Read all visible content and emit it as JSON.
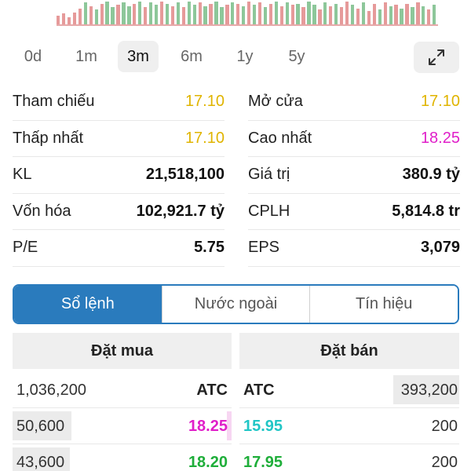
{
  "periods": [
    {
      "label": "0d",
      "active": false
    },
    {
      "label": "1m",
      "active": false
    },
    {
      "label": "3m",
      "active": true
    },
    {
      "label": "6m",
      "active": false
    },
    {
      "label": "1y",
      "active": false
    },
    {
      "label": "5y",
      "active": false
    }
  ],
  "colors": {
    "up": "#8dc79a",
    "down": "#e69a9a",
    "reference": "#e0b400",
    "ceiling": "#e01fc9",
    "floor": "#21c6c6",
    "rise": "#1fae3a",
    "accent": "#2a7bbd"
  },
  "stats": [
    {
      "left": {
        "label": "Tham chiếu",
        "value": "17.10",
        "tone": "yellow"
      },
      "right": {
        "label": "Mở cửa",
        "value": "17.10",
        "tone": "yellow"
      }
    },
    {
      "left": {
        "label": "Thấp nhất",
        "value": "17.10",
        "tone": "yellow"
      },
      "right": {
        "label": "Cao nhất",
        "value": "18.25",
        "tone": "magenta"
      }
    },
    {
      "left": {
        "label": "KL",
        "value": "21,518,100",
        "tone": "plain"
      },
      "right": {
        "label": "Giá trị",
        "value": "380.9 tỷ",
        "tone": "plain"
      }
    },
    {
      "left": {
        "label": "Vốn hóa",
        "value": "102,921.7 tỷ",
        "tone": "plain"
      },
      "right": {
        "label": "CPLH",
        "value": "5,814.8 tr",
        "tone": "plain"
      }
    },
    {
      "left": {
        "label": "P/E",
        "value": "5.75",
        "tone": "plain"
      },
      "right": {
        "label": "EPS",
        "value": "3,079",
        "tone": "plain"
      }
    }
  ],
  "segment_tabs": [
    {
      "label": "Sổ lệnh",
      "active": true
    },
    {
      "label": "Nước ngoài",
      "active": false
    },
    {
      "label": "Tín hiệu",
      "active": false
    }
  ],
  "orderbook": {
    "buy_header": "Đặt mua",
    "sell_header": "Đặt bán",
    "rows": [
      {
        "buy_qty": "1,036,200",
        "buy_price": "ATC",
        "buy_price_tone": "plain",
        "buy_fill": 0.0,
        "sell_price": "ATC",
        "sell_price_tone": "plain",
        "sell_qty": "393,200",
        "sell_fill": 0.3
      },
      {
        "buy_qty": "50,600",
        "buy_price": "18.25",
        "buy_price_tone": "ceiling",
        "buy_fill": 0.27,
        "sell_price": "15.95",
        "sell_price_tone": "floor",
        "sell_qty": "200",
        "sell_fill": 0.0
      },
      {
        "buy_qty": "43,600",
        "buy_price": "18.20",
        "buy_price_tone": "rise",
        "buy_fill": 0.26,
        "sell_price": "17.95",
        "sell_price_tone": "rise",
        "sell_qty": "200",
        "sell_fill": 0.0
      }
    ]
  },
  "volume_strip": {
    "bars": [
      {
        "v": 0.35,
        "dir": "down"
      },
      {
        "v": 0.45,
        "dir": "down"
      },
      {
        "v": 0.3,
        "dir": "down"
      },
      {
        "v": 0.5,
        "dir": "down"
      },
      {
        "v": 0.65,
        "dir": "down"
      },
      {
        "v": 0.9,
        "dir": "up"
      },
      {
        "v": 0.75,
        "dir": "down"
      },
      {
        "v": 0.6,
        "dir": "up"
      },
      {
        "v": 0.85,
        "dir": "down"
      },
      {
        "v": 0.95,
        "dir": "up"
      },
      {
        "v": 0.7,
        "dir": "up"
      },
      {
        "v": 0.8,
        "dir": "down"
      },
      {
        "v": 0.9,
        "dir": "up"
      },
      {
        "v": 0.75,
        "dir": "up"
      },
      {
        "v": 0.85,
        "dir": "down"
      },
      {
        "v": 0.95,
        "dir": "up"
      },
      {
        "v": 0.7,
        "dir": "down"
      },
      {
        "v": 0.9,
        "dir": "up"
      },
      {
        "v": 0.8,
        "dir": "up"
      },
      {
        "v": 0.95,
        "dir": "down"
      },
      {
        "v": 0.85,
        "dir": "up"
      },
      {
        "v": 0.75,
        "dir": "down"
      },
      {
        "v": 0.9,
        "dir": "up"
      },
      {
        "v": 0.7,
        "dir": "down"
      },
      {
        "v": 0.95,
        "dir": "up"
      },
      {
        "v": 0.8,
        "dir": "up"
      },
      {
        "v": 0.9,
        "dir": "down"
      },
      {
        "v": 0.75,
        "dir": "up"
      },
      {
        "v": 0.85,
        "dir": "down"
      },
      {
        "v": 0.95,
        "dir": "up"
      },
      {
        "v": 0.7,
        "dir": "up"
      },
      {
        "v": 0.8,
        "dir": "down"
      },
      {
        "v": 0.9,
        "dir": "up"
      },
      {
        "v": 0.85,
        "dir": "down"
      },
      {
        "v": 0.75,
        "dir": "up"
      },
      {
        "v": 0.95,
        "dir": "down"
      },
      {
        "v": 0.8,
        "dir": "up"
      },
      {
        "v": 0.9,
        "dir": "down"
      },
      {
        "v": 0.7,
        "dir": "up"
      },
      {
        "v": 0.85,
        "dir": "down"
      },
      {
        "v": 0.95,
        "dir": "up"
      },
      {
        "v": 0.75,
        "dir": "down"
      },
      {
        "v": 0.9,
        "dir": "up"
      },
      {
        "v": 0.8,
        "dir": "down"
      },
      {
        "v": 0.85,
        "dir": "up"
      },
      {
        "v": 0.7,
        "dir": "down"
      },
      {
        "v": 0.95,
        "dir": "up"
      },
      {
        "v": 0.8,
        "dir": "up"
      },
      {
        "v": 0.6,
        "dir": "down"
      },
      {
        "v": 0.9,
        "dir": "up"
      },
      {
        "v": 0.75,
        "dir": "down"
      },
      {
        "v": 0.85,
        "dir": "up"
      },
      {
        "v": 0.7,
        "dir": "down"
      },
      {
        "v": 0.95,
        "dir": "down"
      },
      {
        "v": 0.8,
        "dir": "up"
      },
      {
        "v": 0.65,
        "dir": "down"
      },
      {
        "v": 0.9,
        "dir": "up"
      },
      {
        "v": 0.55,
        "dir": "down"
      },
      {
        "v": 0.85,
        "dir": "down"
      },
      {
        "v": 0.6,
        "dir": "up"
      },
      {
        "v": 0.9,
        "dir": "down"
      },
      {
        "v": 0.75,
        "dir": "up"
      },
      {
        "v": 0.8,
        "dir": "down"
      },
      {
        "v": 0.65,
        "dir": "up"
      },
      {
        "v": 0.85,
        "dir": "down"
      },
      {
        "v": 0.7,
        "dir": "up"
      },
      {
        "v": 0.9,
        "dir": "down"
      },
      {
        "v": 0.75,
        "dir": "up"
      },
      {
        "v": 0.6,
        "dir": "down"
      },
      {
        "v": 0.8,
        "dir": "up"
      }
    ]
  }
}
